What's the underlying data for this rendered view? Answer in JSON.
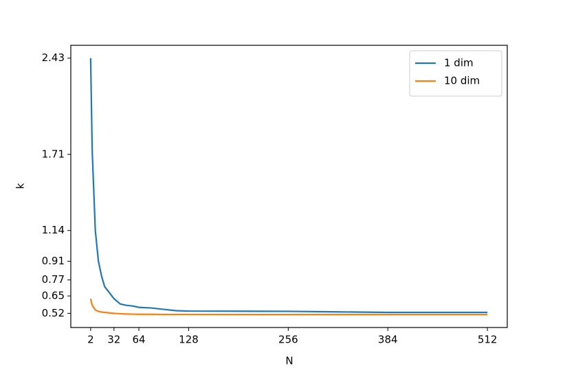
{
  "chart_data": {
    "type": "line",
    "x_label": "N",
    "y_label": "k",
    "x": [
      2,
      4,
      8,
      12,
      16,
      20,
      32,
      40,
      48,
      56,
      64,
      80,
      96,
      112,
      128,
      192,
      256,
      320,
      384,
      448,
      512
    ],
    "series": [
      {
        "name": "1 dim",
        "color": "#1f77b4",
        "values": [
          2.43,
          1.74,
          1.14,
          0.91,
          0.8,
          0.72,
          0.63,
          0.59,
          0.58,
          0.575,
          0.565,
          0.56,
          0.55,
          0.54,
          0.537,
          0.536,
          0.535,
          0.531,
          0.527,
          0.527,
          0.527
        ]
      },
      {
        "name": "10 dim",
        "color": "#ff7f0e",
        "values": [
          0.63,
          0.58,
          0.545,
          0.535,
          0.53,
          0.527,
          0.52,
          0.517,
          0.515,
          0.514,
          0.513,
          0.513,
          0.512,
          0.512,
          0.512,
          0.511,
          0.511,
          0.511,
          0.511,
          0.511,
          0.511
        ]
      }
    ],
    "xlim": [
      -23.5,
      537.5
    ],
    "ylim": [
      0.414,
      2.526
    ],
    "xticks": [
      2,
      32,
      64,
      128,
      256,
      384,
      512
    ],
    "yticks": [
      0.52,
      0.65,
      0.77,
      0.91,
      1.14,
      1.71,
      2.43
    ],
    "legend": "upper right",
    "grid": false
  }
}
